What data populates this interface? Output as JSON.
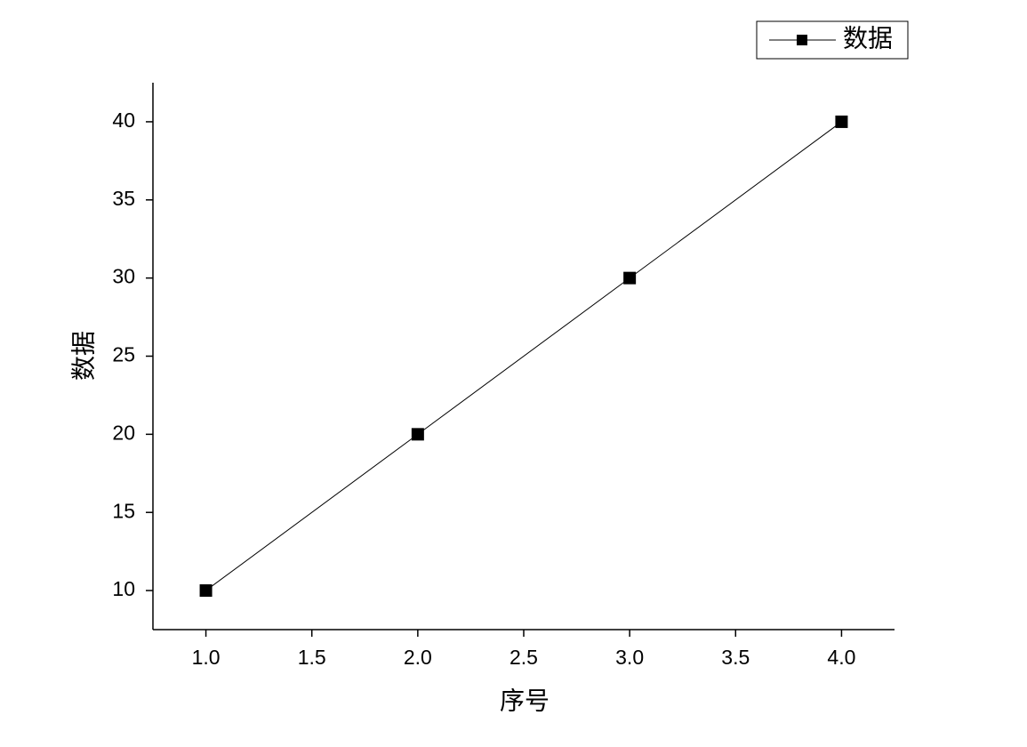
{
  "chart_data": {
    "type": "line",
    "x_label": "序号",
    "y_label": "数据",
    "x": [
      1,
      2,
      3,
      4
    ],
    "series": [
      {
        "name": "数据",
        "color": "#000000",
        "values": [
          10,
          20,
          30,
          40
        ]
      }
    ],
    "xlim": [
      0.75,
      4.25
    ],
    "xticks": [
      {
        "value": 1,
        "label": "1.0"
      },
      1.5,
      {
        "value": 2,
        "label": "2.0"
      },
      2.5,
      {
        "value": 3,
        "label": "3.0"
      },
      3.5,
      {
        "value": 4,
        "label": "4.0"
      }
    ],
    "ylim": [
      7.5,
      42.5
    ],
    "yticks": [
      10,
      15,
      20,
      25,
      30,
      35,
      40
    ],
    "grid": false,
    "legend": "top-right"
  }
}
